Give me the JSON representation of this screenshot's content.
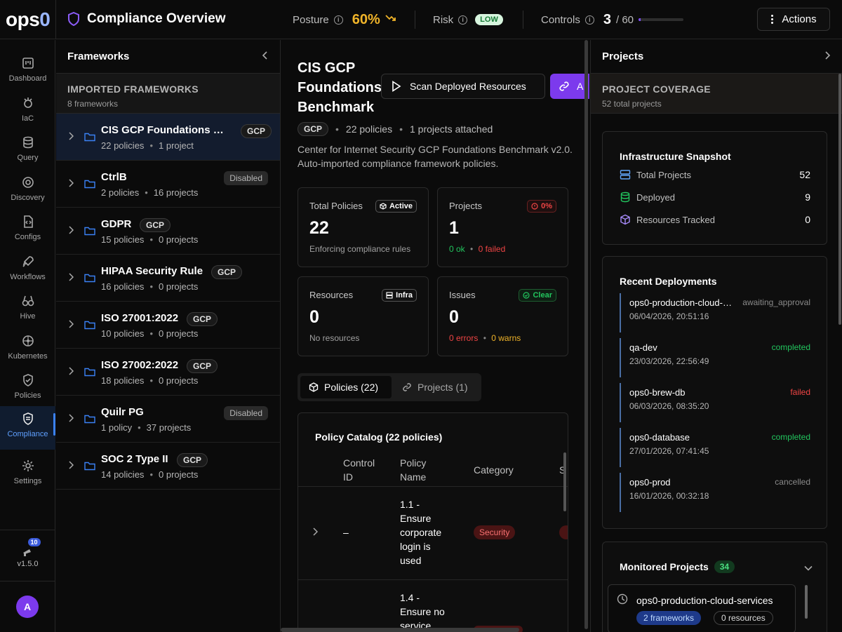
{
  "header": {
    "logo_text": "ops",
    "logo_digit": "0",
    "title": "Compliance Overview",
    "posture_label": "Posture",
    "posture_value": "60%",
    "risk_label": "Risk",
    "risk_value": "LOW",
    "controls_label": "Controls",
    "controls_value": "3",
    "controls_total": "/ 60",
    "controls_fraction": 0.05,
    "actions_label": "Actions"
  },
  "rail": {
    "items": [
      {
        "label": "Dashboard",
        "icon": "dashboard-icon"
      },
      {
        "label": "IaC",
        "icon": "iac-icon"
      },
      {
        "label": "Query",
        "icon": "database-icon"
      },
      {
        "label": "Discovery",
        "icon": "discovery-icon"
      },
      {
        "label": "Configs",
        "icon": "code-file-icon"
      },
      {
        "label": "Workflows",
        "icon": "rocket-icon"
      },
      {
        "label": "Hive",
        "icon": "binoculars-icon"
      },
      {
        "label": "Kubernetes",
        "icon": "helm-icon"
      },
      {
        "label": "Policies",
        "icon": "shield-check-icon"
      },
      {
        "label": "Compliance",
        "icon": "shield-doc-icon"
      },
      {
        "label": "Settings",
        "icon": "gear-icon"
      }
    ],
    "active": "Compliance",
    "notif_count": "10",
    "version": "v1.5.0",
    "avatar_letter": "A"
  },
  "frameworks_panel": {
    "title": "Frameworks",
    "section_title": "IMPORTED FRAMEWORKS",
    "section_sub": "8 frameworks",
    "items": [
      {
        "name": "CIS GCP Foundations Benchmark",
        "policies": "22 policies",
        "projects": "1 project",
        "tag": "GCP",
        "selected": true
      },
      {
        "name": "CtrlB",
        "policies": "2 policies",
        "projects": "16 projects",
        "tag": "Disabled"
      },
      {
        "name": "GDPR",
        "policies": "15 policies",
        "projects": "0 projects",
        "tag": "GCP"
      },
      {
        "name": "HIPAA Security Rule",
        "policies": "16 policies",
        "projects": "0 projects",
        "tag": "GCP"
      },
      {
        "name": "ISO 27001:2022",
        "policies": "10 policies",
        "projects": "0 projects",
        "tag": "GCP"
      },
      {
        "name": "ISO 27002:2022",
        "policies": "18 policies",
        "projects": "0 projects",
        "tag": "GCP"
      },
      {
        "name": "Quilr PG",
        "policies": "1 policy",
        "projects": "37 projects",
        "tag": "Disabled"
      },
      {
        "name": "SOC 2 Type II",
        "policies": "14 policies",
        "projects": "0 projects",
        "tag": "GCP"
      }
    ]
  },
  "detail": {
    "title": "CIS GCP Foundations Benchmark",
    "title_line1": "CIS GCP",
    "title_line2": "Foundations",
    "title_line3": "Benchmark",
    "scan_label": "Scan Deployed Resources",
    "attach_label": "A",
    "provider_tag": "GCP",
    "policies_meta": "22 policies",
    "projects_meta": "1 projects attached",
    "description": "Center for Internet Security GCP Foundations Benchmark v2.0. Auto-imported compliance framework policies.",
    "cards": {
      "total_policies": {
        "label": "Total Policies",
        "pill": "Active",
        "value": "22",
        "sub": "Enforcing compliance rules"
      },
      "projects": {
        "label": "Projects",
        "pill": "0%",
        "value": "1",
        "ok": "0 ok",
        "failed": "0 failed"
      },
      "resources": {
        "label": "Resources",
        "pill": "Infra",
        "value": "0",
        "sub": "No resources"
      },
      "issues": {
        "label": "Issues",
        "pill": "Clear",
        "value": "0",
        "errors": "0 errors",
        "warns": "0 warns"
      }
    },
    "tabs": [
      {
        "label": "Policies (22)",
        "active": true
      },
      {
        "label": "Projects (1)",
        "active": false
      }
    ],
    "catalog": {
      "title": "Policy Catalog (22 policies)",
      "columns": [
        "Control ID",
        "Policy Name",
        "Category",
        "S"
      ],
      "rows": [
        {
          "control_id": "–",
          "name_lines": [
            "1.1 -",
            "Ensure",
            "corporate",
            "login is",
            "used"
          ],
          "category": "Security"
        },
        {
          "control_id": "",
          "name_lines": [
            "1.4 -",
            "Ensure no",
            "service"
          ],
          "category": "Security"
        }
      ]
    }
  },
  "projects_panel": {
    "title": "Projects",
    "coverage_title": "PROJECT COVERAGE",
    "coverage_sub": "52 total projects",
    "snapshot": {
      "title": "Infrastructure Snapshot",
      "rows": [
        {
          "label": "Total Projects",
          "value": "52",
          "icon": "server-icon"
        },
        {
          "label": "Deployed",
          "value": "9",
          "icon": "database-icon"
        },
        {
          "label": "Resources Tracked",
          "value": "0",
          "icon": "cube-icon"
        }
      ]
    },
    "deployments": {
      "title": "Recent Deployments",
      "items": [
        {
          "name": "ops0-production-cloud-services",
          "status": "awaiting_approval",
          "date": "06/04/2026, 20:51:16"
        },
        {
          "name": "qa-dev",
          "status": "completed",
          "date": "23/03/2026, 22:56:49"
        },
        {
          "name": "ops0-brew-db",
          "status": "failed",
          "date": "06/03/2026, 08:35:20"
        },
        {
          "name": "ops0-database",
          "status": "completed",
          "date": "27/01/2026, 07:41:45"
        },
        {
          "name": "ops0-prod",
          "status": "cancelled",
          "date": "16/01/2026, 00:32:18"
        }
      ]
    },
    "monitored": {
      "title": "Monitored Projects",
      "count": "34",
      "first_project": "ops0-production-cloud-services",
      "frameworks": "2 frameworks",
      "resources": "0 resources"
    }
  },
  "colors": {
    "accent": "#7c3aed",
    "posture": "#f0b429",
    "success": "#22c55e",
    "danger": "#ef4444",
    "active_nav": "#3b82f6"
  }
}
